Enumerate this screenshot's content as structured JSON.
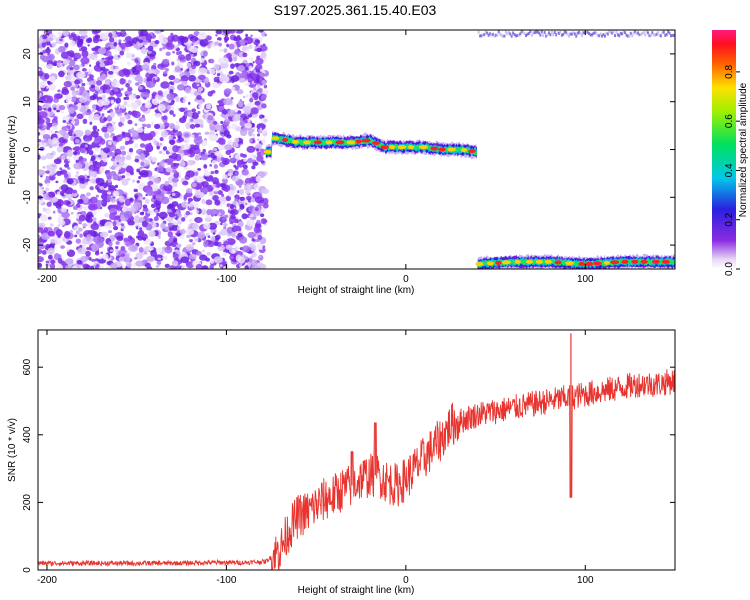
{
  "chart_data": [
    {
      "type": "heatmap",
      "title": "S197.2025.361.15.40.E03",
      "xlabel": "Height of straight line (km)",
      "ylabel": "Frequency (Hz)",
      "xlim": [
        -205,
        150
      ],
      "ylim": [
        -25,
        25
      ],
      "xticks": [
        -200,
        -100,
        0,
        100
      ],
      "yticks": [
        -20,
        -10,
        0,
        10,
        20
      ],
      "colorbar": {
        "label": "Normalized spectral amplitude",
        "range": [
          0,
          0.97
        ],
        "ticks": [
          0.0,
          0.2,
          0.4,
          0.6,
          0.8
        ],
        "colormap": "rainbow (violet → blue → cyan → green → yellow → red → magenta)"
      },
      "regions": [
        {
          "name": "noise",
          "x_range": [
            -205,
            -78
          ],
          "y_range": [
            -25,
            25
          ],
          "amplitude": "0.0–0.25"
        },
        {
          "name": "carrier-upper",
          "x_range": [
            -78,
            40
          ],
          "freq_track": [
            [
              -75,
              2.5
            ],
            [
              -60,
              1.5
            ],
            [
              -45,
              1.5
            ],
            [
              -30,
              1.5
            ],
            [
              -20,
              2.0
            ],
            [
              -12,
              0.5
            ],
            [
              0,
              0.5
            ],
            [
              10,
              0.5
            ],
            [
              20,
              0.0
            ],
            [
              30,
              0.0
            ],
            [
              40,
              -0.5
            ]
          ],
          "amplitude": "0.6–0.9"
        },
        {
          "name": "carrier-aliased",
          "x_range": [
            40,
            150
          ],
          "freq_track": [
            [
              40,
              -24.0
            ],
            [
              60,
              -23.5
            ],
            [
              80,
              -23.5
            ],
            [
              100,
              -24.0
            ],
            [
              120,
              -23.5
            ],
            [
              150,
              -23.5
            ]
          ],
          "amplitude": "0.6–0.9"
        },
        {
          "name": "alias-top",
          "x_range": [
            40,
            150
          ],
          "y_range": [
            24,
            25
          ],
          "amplitude": "0.1–0.3"
        }
      ]
    },
    {
      "type": "line",
      "xlabel": "Height of straight line (km)",
      "ylabel": "SNR (10 * v/v)",
      "xlim": [
        -205,
        150
      ],
      "ylim": [
        0,
        710
      ],
      "xticks": [
        -200,
        -100,
        0,
        100
      ],
      "yticks": [
        0,
        200,
        400,
        600
      ],
      "color": "#e8332e",
      "series": [
        {
          "x": [
            -205,
            -190,
            -170,
            -150,
            -130,
            -110,
            -90,
            -78,
            -70,
            -65,
            -60,
            -55,
            -50,
            -45,
            -40,
            -35,
            -30,
            -25,
            -20,
            -15,
            -10,
            -5,
            0,
            5,
            10,
            15,
            20,
            25,
            30,
            40,
            50,
            60,
            70,
            80,
            90,
            100,
            110,
            120,
            130,
            140,
            150
          ],
          "values": [
            20,
            20,
            20,
            20,
            20,
            22,
            22,
            25,
            60,
            120,
            160,
            170,
            190,
            210,
            220,
            240,
            250,
            270,
            280,
            280,
            260,
            250,
            270,
            300,
            330,
            360,
            390,
            430,
            440,
            460,
            470,
            480,
            490,
            500,
            510,
            520,
            530,
            540,
            550,
            550,
            560
          ],
          "noise_amplitude": 30,
          "features": [
            {
              "x": -30,
              "value": 350,
              "kind": "spike"
            },
            {
              "x": -17,
              "value": 435,
              "kind": "spike"
            },
            {
              "x": 92,
              "value": 700,
              "kind": "spike"
            },
            {
              "x": 92,
              "value": 215,
              "kind": "dip"
            }
          ]
        }
      ]
    }
  ]
}
